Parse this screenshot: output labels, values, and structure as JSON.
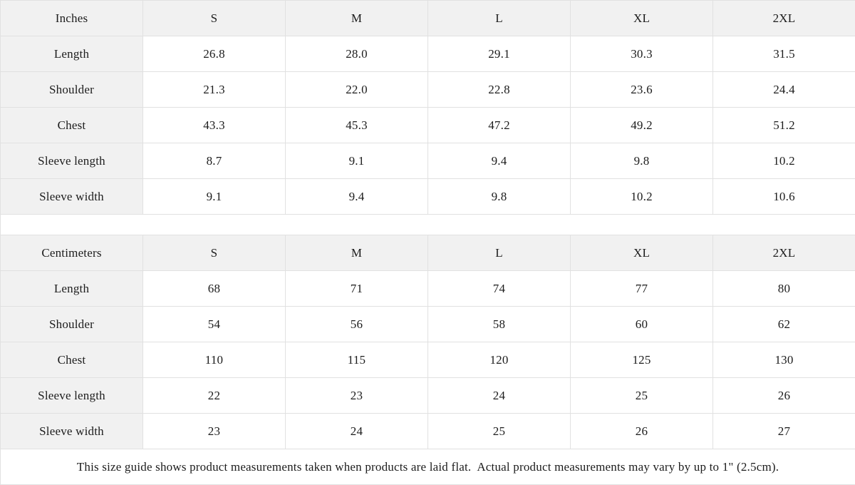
{
  "colors": {
    "header_bg": "#f1f1f1",
    "border": "#e1e1e1",
    "cell_bg": "#ffffff",
    "text": "#1c1c1c"
  },
  "tables": [
    {
      "unit_label": "Inches",
      "columns": [
        "S",
        "M",
        "L",
        "XL",
        "2XL"
      ],
      "rows": [
        {
          "label": "Length",
          "values": [
            "26.8",
            "28.0",
            "29.1",
            "30.3",
            "31.5"
          ]
        },
        {
          "label": "Shoulder",
          "values": [
            "21.3",
            "22.0",
            "22.8",
            "23.6",
            "24.4"
          ]
        },
        {
          "label": "Chest",
          "values": [
            "43.3",
            "45.3",
            "47.2",
            "49.2",
            "51.2"
          ]
        },
        {
          "label": "Sleeve length",
          "values": [
            "8.7",
            "9.1",
            "9.4",
            "9.8",
            "10.2"
          ]
        },
        {
          "label": "Sleeve width",
          "values": [
            "9.1",
            "9.4",
            "9.8",
            "10.2",
            "10.6"
          ]
        }
      ]
    },
    {
      "unit_label": "Centimeters",
      "columns": [
        "S",
        "M",
        "L",
        "XL",
        "2XL"
      ],
      "rows": [
        {
          "label": "Length",
          "values": [
            "68",
            "71",
            "74",
            "77",
            "80"
          ]
        },
        {
          "label": "Shoulder",
          "values": [
            "54",
            "56",
            "58",
            "60",
            "62"
          ]
        },
        {
          "label": "Chest",
          "values": [
            "110",
            "115",
            "120",
            "125",
            "130"
          ]
        },
        {
          "label": "Sleeve length",
          "values": [
            "22",
            "23",
            "24",
            "25",
            "26"
          ]
        },
        {
          "label": "Sleeve width",
          "values": [
            "23",
            "24",
            "25",
            "26",
            "27"
          ]
        }
      ]
    }
  ],
  "footer": {
    "note": "This size guide shows product measurements taken when products are laid flat.  Actual product measurements may vary by up to 1\" (2.5cm)."
  }
}
